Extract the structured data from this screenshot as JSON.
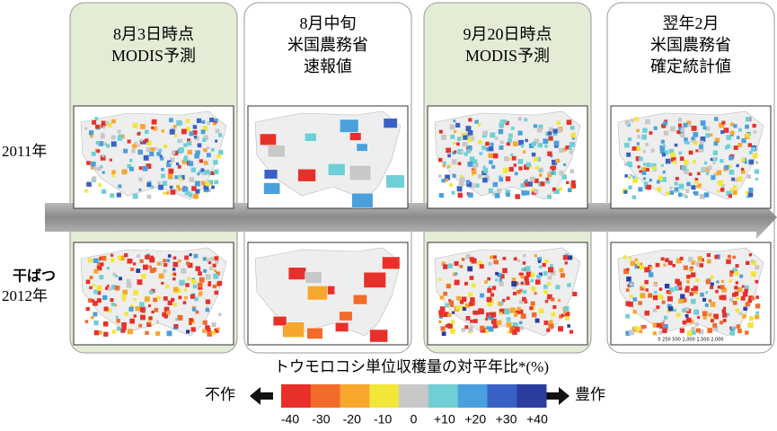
{
  "columns": [
    {
      "header_lines": [
        "8月3日時点",
        "MODIS予測"
      ]
    },
    {
      "header_lines": [
        "8月中旬",
        "米国農務省",
        "速報値"
      ]
    },
    {
      "header_lines": [
        "9月20日時点",
        "MODIS予測"
      ]
    },
    {
      "header_lines": [
        "翌年2月",
        "米国農務省",
        "確定統計値"
      ]
    }
  ],
  "rows": [
    {
      "label": "2011年"
    },
    {
      "note": "干ばつ",
      "label": "2012年"
    }
  ],
  "scale_bar": "0 250 500 1,000 1,500 2,000",
  "legend": {
    "title": "トウモロコシ単位収穫量の対平年比*(%)",
    "left": "不作",
    "right": "豊作",
    "colors": [
      "#e8302a",
      "#f26b2a",
      "#f7a72e",
      "#f2e63a",
      "#c8c8c8",
      "#6fcfd6",
      "#4aa0dc",
      "#3a62c6",
      "#2b3ea0"
    ],
    "tick_labels": [
      "-40",
      "-30",
      "-20",
      "-10",
      "0",
      "+10",
      "+20",
      "+30",
      "+40"
    ]
  }
}
